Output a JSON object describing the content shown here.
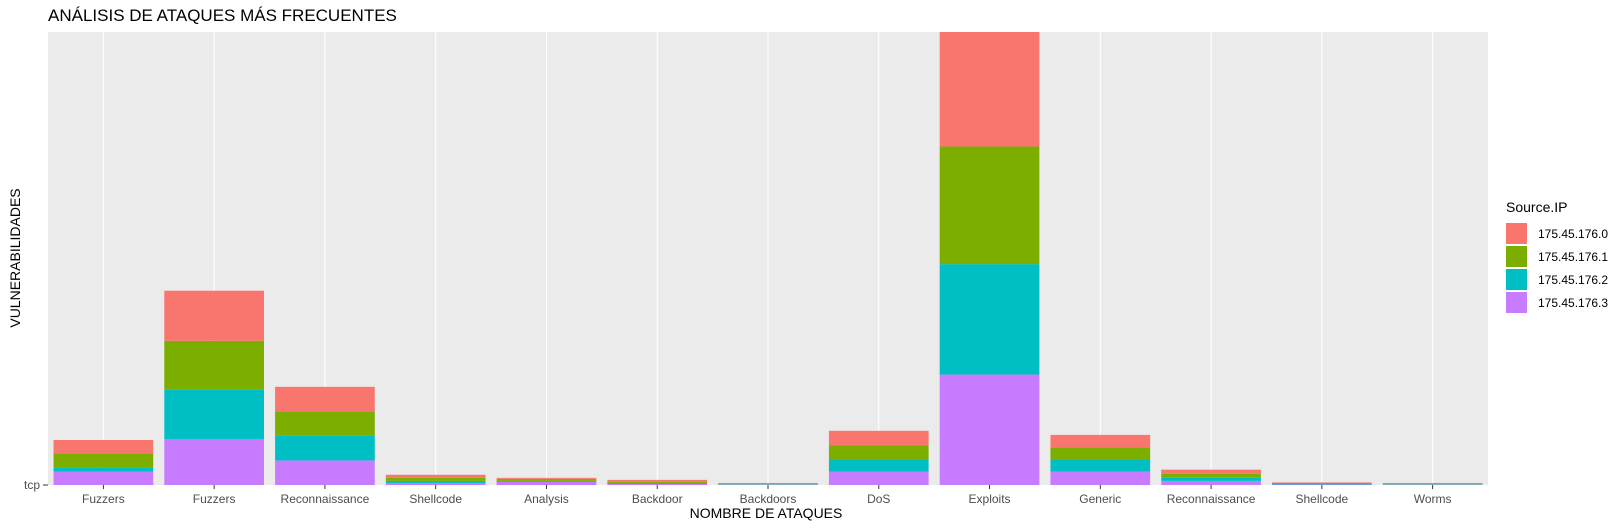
{
  "chart_data": {
    "type": "bar",
    "stacked": true,
    "title": "ANÁLISIS DE ATAQUES MÁS FRECUENTES",
    "xlabel": "NOMBRE DE ATAQUES",
    "ylabel": "VULNERABILIDADES",
    "y_tick_label": "tcp",
    "categories": [
      "Fuzzers",
      "Fuzzers",
      "Reconnaissance",
      "Shellcode",
      "Analysis",
      "Backdoor",
      "Backdoors",
      "DoS",
      "Exploits",
      "Generic",
      "Reconnaissance",
      "Shellcode",
      "Worms"
    ],
    "series": [
      {
        "name": "175.45.176.3",
        "color": "#C77CFF",
        "values": [
          13,
          45,
          24,
          2,
          3,
          1,
          0.4,
          13,
          108,
          13,
          4,
          0.5,
          0.4
        ]
      },
      {
        "name": "175.45.176.2",
        "color": "#00BFC4",
        "values": [
          4,
          48,
          24,
          2,
          1,
          1,
          0.4,
          12,
          108,
          12,
          3,
          1,
          0.4
        ]
      },
      {
        "name": "175.45.176.1",
        "color": "#7CAE00",
        "values": [
          14,
          48,
          24,
          3,
          2,
          1,
          0.6,
          14,
          115,
          12,
          4,
          0.5,
          0.6
        ]
      },
      {
        "name": "175.45.176.0",
        "color": "#F8766D",
        "values": [
          13,
          49,
          24,
          3,
          1,
          2,
          0.6,
          14,
          112,
          12,
          4,
          0.5,
          0.6
        ]
      }
    ],
    "legend_title": "Source.IP",
    "legend_order": [
      "175.45.176.0",
      "175.45.176.1",
      "175.45.176.2",
      "175.45.176.3"
    ],
    "legend_position": "right",
    "ylim": [
      0,
      443
    ],
    "grid": true,
    "panel_background": "#EBEBEB",
    "grid_color": "#FFFFFF"
  }
}
